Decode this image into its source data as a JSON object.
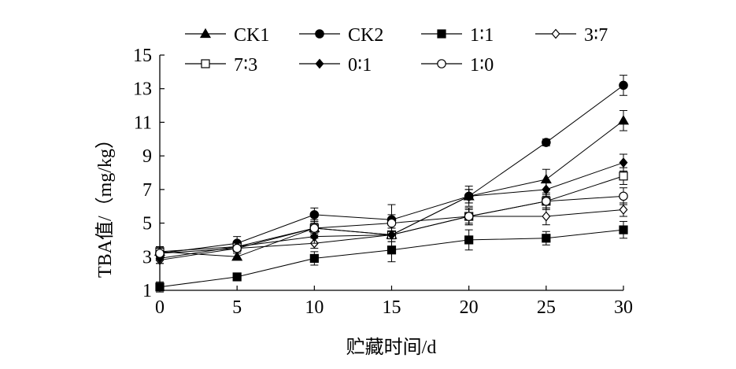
{
  "chart_data": {
    "type": "line",
    "x": [
      0,
      5,
      10,
      15,
      20,
      25,
      30
    ],
    "xlabel": "贮藏时间/d",
    "ylabel": "TBA值/（mg/kg）",
    "xlim": [
      0,
      30
    ],
    "ylim": [
      1,
      15
    ],
    "xticks": [
      0,
      5,
      10,
      15,
      20,
      25,
      30
    ],
    "yticks": [
      1,
      3,
      5,
      7,
      9,
      11,
      13,
      15
    ],
    "grid": false,
    "legend_position": "top",
    "series": [
      {
        "name": "CK1",
        "marker": "triangle-filled",
        "values": [
          3.3,
          3.0,
          4.7,
          4.3,
          6.6,
          7.6,
          11.1
        ],
        "errors": [
          0.3,
          0.2,
          0.3,
          0.4,
          0.4,
          0.6,
          0.6
        ]
      },
      {
        "name": "CK2",
        "marker": "circle-filled",
        "values": [
          3.2,
          3.8,
          5.5,
          5.2,
          6.6,
          9.8,
          13.2
        ],
        "errors": [
          0.3,
          0.4,
          0.4,
          0.9,
          0.6,
          0.2,
          0.6
        ]
      },
      {
        "name": "1∶1",
        "marker": "square-filled",
        "values": [
          1.2,
          1.8,
          2.9,
          3.4,
          4.0,
          4.1,
          4.6
        ],
        "errors": [
          0.3,
          0.2,
          0.4,
          0.7,
          0.6,
          0.4,
          0.5
        ]
      },
      {
        "name": "3∶7",
        "marker": "diamond-open",
        "values": [
          2.8,
          3.5,
          3.8,
          4.3,
          5.4,
          5.4,
          5.8
        ],
        "errors": [
          0.2,
          0.2,
          0.3,
          0.4,
          0.4,
          0.5,
          0.4
        ]
      },
      {
        "name": "7∶3",
        "marker": "square-open",
        "values": [
          3.3,
          3.6,
          4.7,
          4.3,
          5.4,
          6.3,
          7.8
        ],
        "errors": [
          0.3,
          0.3,
          0.4,
          0.4,
          0.5,
          0.4,
          0.5
        ]
      },
      {
        "name": "0∶1",
        "marker": "diamond-filled",
        "values": [
          2.9,
          3.6,
          4.2,
          4.3,
          6.6,
          7.0,
          8.6
        ],
        "errors": [
          0.3,
          0.3,
          0.4,
          0.4,
          0.4,
          0.4,
          0.5
        ]
      },
      {
        "name": "1∶0",
        "marker": "circle-open",
        "values": [
          3.2,
          3.5,
          4.7,
          5.0,
          5.4,
          6.3,
          6.6
        ],
        "errors": [
          0.3,
          0.3,
          0.5,
          0.5,
          0.5,
          0.5,
          0.5
        ]
      }
    ]
  }
}
